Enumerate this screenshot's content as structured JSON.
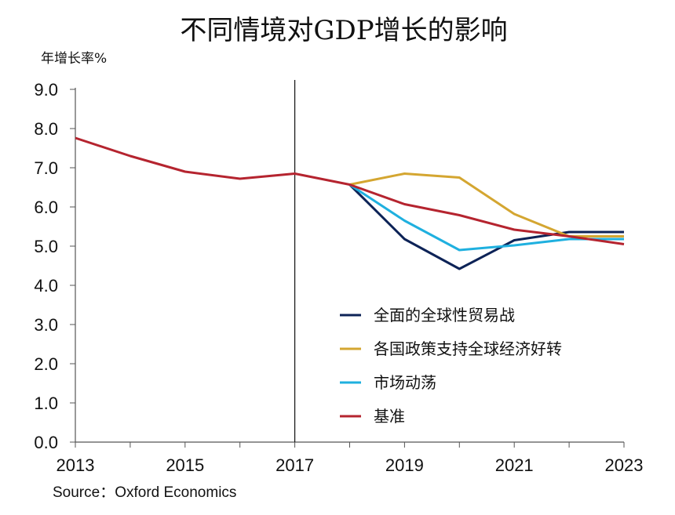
{
  "chart_data": {
    "type": "line",
    "title": "不同情境对GDP增长的影响",
    "ylabel": "年增长率%",
    "xlabel": "",
    "source": "Source：Oxford Economics",
    "x": [
      2013,
      2014,
      2015,
      2016,
      2017,
      2018,
      2019,
      2020,
      2021,
      2022,
      2023
    ],
    "x_ticks": [
      "2013",
      "2015",
      "2017",
      "2019",
      "2021",
      "2023"
    ],
    "y_ticks": [
      "0.0",
      "1.0",
      "2.0",
      "3.0",
      "4.0",
      "5.0",
      "6.0",
      "7.0",
      "8.0",
      "9.0"
    ],
    "xlim": [
      2013,
      2023
    ],
    "ylim": [
      0,
      9
    ],
    "vertical_line_x": 2017,
    "grid": false,
    "legend_position": "center-right",
    "series": [
      {
        "name": "全面的全球性贸易战",
        "color": "#0d2357",
        "values": [
          null,
          null,
          null,
          null,
          null,
          6.57,
          5.18,
          4.42,
          5.15,
          5.36,
          5.36
        ]
      },
      {
        "name": "各国政策支持全球经济好转",
        "color": "#d4a631",
        "values": [
          null,
          null,
          null,
          null,
          null,
          6.57,
          6.85,
          6.75,
          5.82,
          5.25,
          5.25
        ]
      },
      {
        "name": "市场动荡",
        "color": "#1fb0df",
        "values": [
          null,
          null,
          null,
          null,
          null,
          6.57,
          5.65,
          4.9,
          5.02,
          5.18,
          5.18
        ]
      },
      {
        "name": "基准",
        "color": "#b5242f",
        "values": [
          7.76,
          7.3,
          6.9,
          6.72,
          6.85,
          6.57,
          6.07,
          5.79,
          5.42,
          5.25,
          5.05
        ]
      }
    ]
  }
}
